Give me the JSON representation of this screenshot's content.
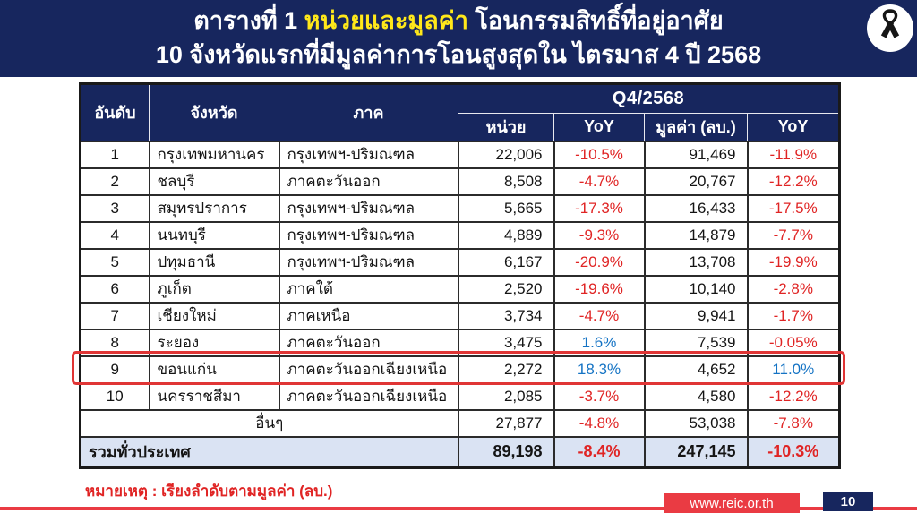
{
  "colors": {
    "navy": "#17265e",
    "accent_red": "#ea3b43",
    "negative_yoy_red": "#e02424",
    "positive_yoy_blue": "#1473c4",
    "title_highlight_yellow": "#ffe81a",
    "total_row_bg": "#dae3f3",
    "highlight_border_red": "#e03535"
  },
  "header": {
    "title_prefix": "ตารางที่ 1 ",
    "title_highlight": "หน่วยและมูลค่า",
    "title_suffix": " โอนกรรมสิทธิ์ที่อยู่อาศัย",
    "title_line2": "10 จังหวัดแรกที่มีมูลค่าการโอนสูงสุดใน ไตรมาส 4 ปี 2568",
    "ribbon_icon": "black-mourning-ribbon"
  },
  "table": {
    "group_header": "Q4/2568",
    "columns": {
      "rank": "อันดับ",
      "province": "จังหวัด",
      "region": "ภาค",
      "units": "หน่วย",
      "units_yoy": "YoY",
      "value": "มูลค่า (ลบ.)",
      "value_yoy": "YoY"
    },
    "rows": [
      {
        "rank": "1",
        "province": "กรุงเทพมหานคร",
        "region": "กรุงเทพฯ-ปริมณฑล",
        "units": "22,006",
        "units_yoy": "-10.5%",
        "value": "91,469",
        "value_yoy": "-11.9%",
        "highlight": false
      },
      {
        "rank": "2",
        "province": "ชลบุรี",
        "region": "ภาคตะวันออก",
        "units": "8,508",
        "units_yoy": "-4.7%",
        "value": "20,767",
        "value_yoy": "-12.2%",
        "highlight": false
      },
      {
        "rank": "3",
        "province": "สมุทรปราการ",
        "region": "กรุงเทพฯ-ปริมณฑล",
        "units": "5,665",
        "units_yoy": "-17.3%",
        "value": "16,433",
        "value_yoy": "-17.5%",
        "highlight": false
      },
      {
        "rank": "4",
        "province": "นนทบุรี",
        "region": "กรุงเทพฯ-ปริมณฑล",
        "units": "4,889",
        "units_yoy": "-9.3%",
        "value": "14,879",
        "value_yoy": "-7.7%",
        "highlight": false
      },
      {
        "rank": "5",
        "province": "ปทุมธานี",
        "region": "กรุงเทพฯ-ปริมณฑล",
        "units": "6,167",
        "units_yoy": "-20.9%",
        "value": "13,708",
        "value_yoy": "-19.9%",
        "highlight": false
      },
      {
        "rank": "6",
        "province": "ภูเก็ต",
        "region": "ภาคใต้",
        "units": "2,520",
        "units_yoy": "-19.6%",
        "value": "10,140",
        "value_yoy": "-2.8%",
        "highlight": false
      },
      {
        "rank": "7",
        "province": "เชียงใหม่",
        "region": "ภาคเหนือ",
        "units": "3,734",
        "units_yoy": "-4.7%",
        "value": "9,941",
        "value_yoy": "-1.7%",
        "highlight": false
      },
      {
        "rank": "8",
        "province": "ระยอง",
        "region": "ภาคตะวันออก",
        "units": "3,475",
        "units_yoy": "1.6%",
        "value": "7,539",
        "value_yoy": "-0.05%",
        "highlight": false
      },
      {
        "rank": "9",
        "province": "ขอนแก่น",
        "region": "ภาคตะวันออกเฉียงเหนือ",
        "units": "2,272",
        "units_yoy": "18.3%",
        "value": "4,652",
        "value_yoy": "11.0%",
        "highlight": true
      },
      {
        "rank": "10",
        "province": "นครราชสีมา",
        "region": "ภาคตะวันออกเฉียงเหนือ",
        "units": "2,085",
        "units_yoy": "-3.7%",
        "value": "4,580",
        "value_yoy": "-12.2%",
        "highlight": false
      }
    ],
    "others_row": {
      "label": "อื่นๆ",
      "units": "27,877",
      "units_yoy": "-4.8%",
      "value": "53,038",
      "value_yoy": "-7.8%"
    },
    "total_row": {
      "label": "รวมทั่วประเทศ",
      "units": "89,198",
      "units_yoy": "-8.4%",
      "value": "247,145",
      "value_yoy": "-10.3%"
    }
  },
  "footer": {
    "note": "หมายเหตุ : เรียงลำดับตามมูลค่า (ลบ.)",
    "website": "www.reic.or.th",
    "page_number": "10"
  }
}
